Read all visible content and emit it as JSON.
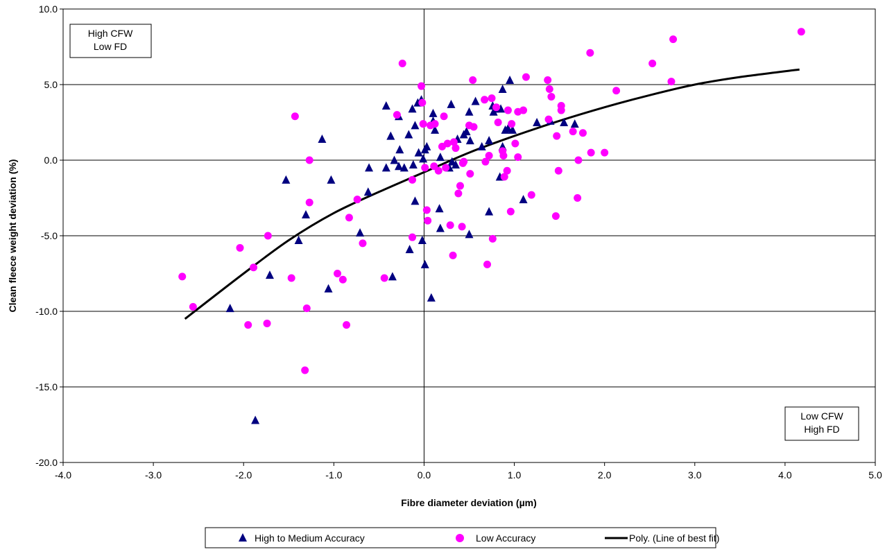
{
  "chart_data": {
    "type": "scatter",
    "xlabel": "Fibre diameter deviation (µm)",
    "ylabel": "Clean fleece weight deviation (%)",
    "xlim": [
      -4.0,
      5.0
    ],
    "ylim": [
      -20.0,
      10.0
    ],
    "x_ticks": [
      "-4.0",
      "-3.0",
      "-2.0",
      "-1.0",
      "0.0",
      "1.0",
      "2.0",
      "3.0",
      "4.0",
      "5.0"
    ],
    "y_ticks": [
      "10.0",
      "5.0",
      "0.0",
      "-5.0",
      "-10.0",
      "-15.0",
      "-20.0"
    ],
    "grid": "horizontal gridlines plus a vertical line at x = 0",
    "legend_position": "bottom",
    "annotations": [
      {
        "lines": [
          "High CFW",
          "Low FD"
        ],
        "position": "top-left"
      },
      {
        "lines": [
          "Low CFW",
          "High FD"
        ],
        "position": "bottom-right"
      }
    ],
    "series": [
      {
        "name": "High to Medium Accuracy",
        "marker": "triangle",
        "color": "#000080",
        "points": [
          [
            -2.15,
            -9.8
          ],
          [
            -1.87,
            -17.2
          ],
          [
            -1.71,
            -7.6
          ],
          [
            -1.53,
            -1.3
          ],
          [
            -1.39,
            -5.3
          ],
          [
            -1.31,
            -3.6
          ],
          [
            -1.13,
            1.4
          ],
          [
            -1.06,
            -8.5
          ],
          [
            -1.03,
            -1.3
          ],
          [
            -0.71,
            -4.8
          ],
          [
            -0.61,
            -0.5
          ],
          [
            -0.62,
            -2.1
          ],
          [
            -0.42,
            3.6
          ],
          [
            -0.42,
            -0.5
          ],
          [
            -0.37,
            1.6
          ],
          [
            -0.35,
            -7.7
          ],
          [
            -0.33,
            0.0
          ],
          [
            -0.28,
            2.9
          ],
          [
            -0.28,
            -0.4
          ],
          [
            -0.27,
            0.7
          ],
          [
            -0.22,
            -0.5
          ],
          [
            -0.17,
            1.7
          ],
          [
            -0.16,
            -5.9
          ],
          [
            -0.13,
            3.4
          ],
          [
            -0.12,
            -0.3
          ],
          [
            -0.1,
            2.3
          ],
          [
            -0.1,
            -2.7
          ],
          [
            -0.07,
            3.8
          ],
          [
            -0.06,
            0.5
          ],
          [
            -0.03,
            4.0
          ],
          [
            -0.02,
            -5.3
          ],
          [
            -0.01,
            0.1
          ],
          [
            0.01,
            0.7
          ],
          [
            0.01,
            -6.9
          ],
          [
            0.03,
            0.9
          ],
          [
            0.08,
            -9.1
          ],
          [
            0.1,
            3.1
          ],
          [
            0.1,
            2.6
          ],
          [
            0.12,
            2.0
          ],
          [
            0.17,
            -3.2
          ],
          [
            0.18,
            -4.5
          ],
          [
            0.18,
            0.2
          ],
          [
            0.28,
            -0.5
          ],
          [
            0.3,
            3.7
          ],
          [
            0.31,
            -0.1
          ],
          [
            0.35,
            -0.3
          ],
          [
            0.37,
            1.4
          ],
          [
            0.44,
            1.7
          ],
          [
            0.47,
            1.9
          ],
          [
            0.5,
            -4.9
          ],
          [
            0.5,
            3.2
          ],
          [
            0.51,
            1.3
          ],
          [
            0.57,
            3.9
          ],
          [
            0.64,
            0.9
          ],
          [
            0.72,
            -3.4
          ],
          [
            0.72,
            1.3
          ],
          [
            0.76,
            3.6
          ],
          [
            0.77,
            3.2
          ],
          [
            0.79,
            3.4
          ],
          [
            0.84,
            -1.1
          ],
          [
            0.85,
            3.4
          ],
          [
            0.87,
            4.7
          ],
          [
            0.87,
            0.9
          ],
          [
            0.9,
            2.0
          ],
          [
            0.93,
            2.1
          ],
          [
            0.95,
            5.3
          ],
          [
            0.98,
            2.0
          ],
          [
            1.1,
            -2.6
          ],
          [
            1.25,
            2.5
          ],
          [
            1.4,
            2.6
          ],
          [
            1.55,
            2.5
          ],
          [
            1.67,
            2.4
          ]
        ]
      },
      {
        "name": "Low Accuracy",
        "marker": "circle",
        "color": "#ff00ff",
        "points": [
          [
            -2.68,
            -7.7
          ],
          [
            -2.56,
            -9.7
          ],
          [
            -2.04,
            -5.8
          ],
          [
            -1.95,
            -10.9
          ],
          [
            -1.89,
            -7.1
          ],
          [
            -1.74,
            -10.8
          ],
          [
            -1.73,
            -5.0
          ],
          [
            -1.47,
            -7.8
          ],
          [
            -1.43,
            2.9
          ],
          [
            -1.32,
            -13.9
          ],
          [
            -1.3,
            -9.8
          ],
          [
            -1.27,
            0.0
          ],
          [
            -1.27,
            -2.8
          ],
          [
            -0.96,
            -7.5
          ],
          [
            -0.9,
            -7.9
          ],
          [
            -0.86,
            -10.9
          ],
          [
            -0.83,
            -3.8
          ],
          [
            -0.74,
            -2.6
          ],
          [
            -0.68,
            -5.5
          ],
          [
            -0.44,
            -7.8
          ],
          [
            -0.3,
            3.0
          ],
          [
            -0.24,
            6.4
          ],
          [
            -0.13,
            -1.3
          ],
          [
            -0.13,
            -5.1
          ],
          [
            -0.03,
            4.9
          ],
          [
            -0.02,
            3.8
          ],
          [
            -0.01,
            2.4
          ],
          [
            0.01,
            -0.5
          ],
          [
            0.03,
            -3.3
          ],
          [
            0.04,
            -4.0
          ],
          [
            0.07,
            2.3
          ],
          [
            0.11,
            -0.4
          ],
          [
            0.12,
            2.4
          ],
          [
            0.16,
            -0.7
          ],
          [
            0.2,
            0.9
          ],
          [
            0.22,
            2.9
          ],
          [
            0.24,
            -0.5
          ],
          [
            0.26,
            1.1
          ],
          [
            0.29,
            -4.3
          ],
          [
            0.32,
            -6.3
          ],
          [
            0.33,
            1.2
          ],
          [
            0.35,
            0.8
          ],
          [
            0.38,
            -2.2
          ],
          [
            0.4,
            -1.7
          ],
          [
            0.42,
            -4.4
          ],
          [
            0.43,
            -0.2
          ],
          [
            0.44,
            -0.1
          ],
          [
            0.5,
            2.3
          ],
          [
            0.51,
            -0.9
          ],
          [
            0.54,
            5.3
          ],
          [
            0.55,
            2.2
          ],
          [
            0.67,
            4.0
          ],
          [
            0.68,
            -0.1
          ],
          [
            0.7,
            -6.9
          ],
          [
            0.72,
            0.3
          ],
          [
            0.75,
            4.1
          ],
          [
            0.76,
            -5.2
          ],
          [
            0.8,
            3.5
          ],
          [
            0.82,
            2.5
          ],
          [
            0.87,
            0.6
          ],
          [
            0.88,
            0.3
          ],
          [
            0.89,
            -1.1
          ],
          [
            0.92,
            -0.7
          ],
          [
            0.93,
            3.3
          ],
          [
            0.96,
            -3.4
          ],
          [
            0.97,
            2.4
          ],
          [
            1.01,
            1.1
          ],
          [
            1.04,
            3.2
          ],
          [
            1.04,
            0.2
          ],
          [
            1.1,
            3.3
          ],
          [
            1.13,
            5.5
          ],
          [
            1.19,
            -2.3
          ],
          [
            1.37,
            5.3
          ],
          [
            1.38,
            2.7
          ],
          [
            1.39,
            4.7
          ],
          [
            1.41,
            4.2
          ],
          [
            1.46,
            -3.7
          ],
          [
            1.47,
            1.6
          ],
          [
            1.49,
            -0.7
          ],
          [
            1.52,
            3.3
          ],
          [
            1.52,
            3.6
          ],
          [
            1.65,
            1.9
          ],
          [
            1.7,
            -2.5
          ],
          [
            1.71,
            0.0
          ],
          [
            1.76,
            1.8
          ],
          [
            1.84,
            7.1
          ],
          [
            1.85,
            0.5
          ],
          [
            2.0,
            0.5
          ],
          [
            2.13,
            4.6
          ],
          [
            2.53,
            6.4
          ],
          [
            2.74,
            5.2
          ],
          [
            2.76,
            8.0
          ],
          [
            4.18,
            8.5
          ]
        ]
      }
    ],
    "trendline": {
      "name": "Poly. (Line of best fit)",
      "color": "#000000",
      "x_range": [
        -2.65,
        4.16
      ],
      "points": [
        [
          -2.65,
          -10.5
        ],
        [
          -2.0,
          -7.5
        ],
        [
          -1.5,
          -5.3
        ],
        [
          -1.0,
          -3.5
        ],
        [
          -0.5,
          -2.1
        ],
        [
          0.0,
          -0.8
        ],
        [
          0.5,
          0.5
        ],
        [
          1.0,
          1.6
        ],
        [
          1.5,
          2.6
        ],
        [
          2.0,
          3.5
        ],
        [
          2.5,
          4.3
        ],
        [
          3.0,
          5.0
        ],
        [
          3.5,
          5.5
        ],
        [
          4.16,
          6.0
        ]
      ]
    }
  }
}
